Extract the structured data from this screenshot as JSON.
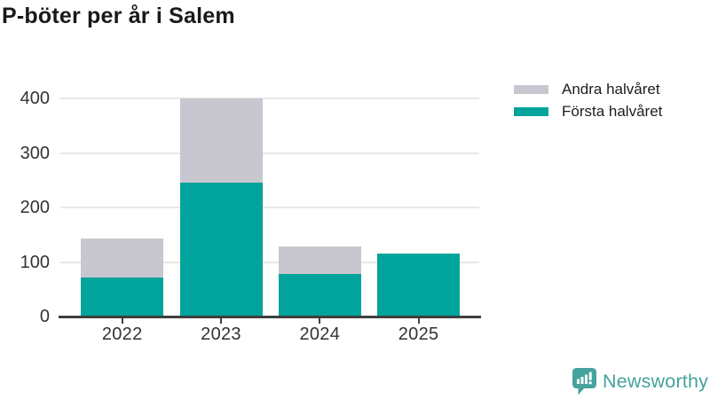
{
  "title": "P-böter per år i Salem",
  "legend": {
    "items": [
      {
        "label": "Andra halvåret",
        "color": "#c8c6cf"
      },
      {
        "label": "Första halvåret",
        "color": "#00a49a"
      }
    ]
  },
  "chart_data": {
    "type": "bar",
    "stacked": true,
    "title": "P-böter per år i Salem",
    "categories": [
      "2022",
      "2023",
      "2024",
      "2025"
    ],
    "series": [
      {
        "name": "Första halvåret",
        "color": "#00a49a",
        "values": [
          72,
          246,
          78,
          115
        ]
      },
      {
        "name": "Andra halvåret",
        "color": "#c8c6cf",
        "values": [
          71,
          154,
          50,
          0
        ]
      }
    ],
    "xlabel": "",
    "ylabel": "",
    "ylim": [
      0,
      400
    ],
    "yticks": [
      0,
      100,
      200,
      300,
      400
    ],
    "grid": true,
    "legend_position": "top-right",
    "legend_order": [
      "Andra halvåret",
      "Första halvåret"
    ]
  },
  "branding": {
    "logo_text": "Newsworthy",
    "logo_color": "#45a29d",
    "logo_icon": "speech-bubble-bar-chart-icon"
  },
  "style": {
    "bar_teal": "#00a49a",
    "bar_gray": "#c8c6cf",
    "grid_color": "#e7e7e7",
    "axis_color": "#3e3e3e",
    "axis_text_color": "#333333",
    "title_color": "#17191a"
  }
}
